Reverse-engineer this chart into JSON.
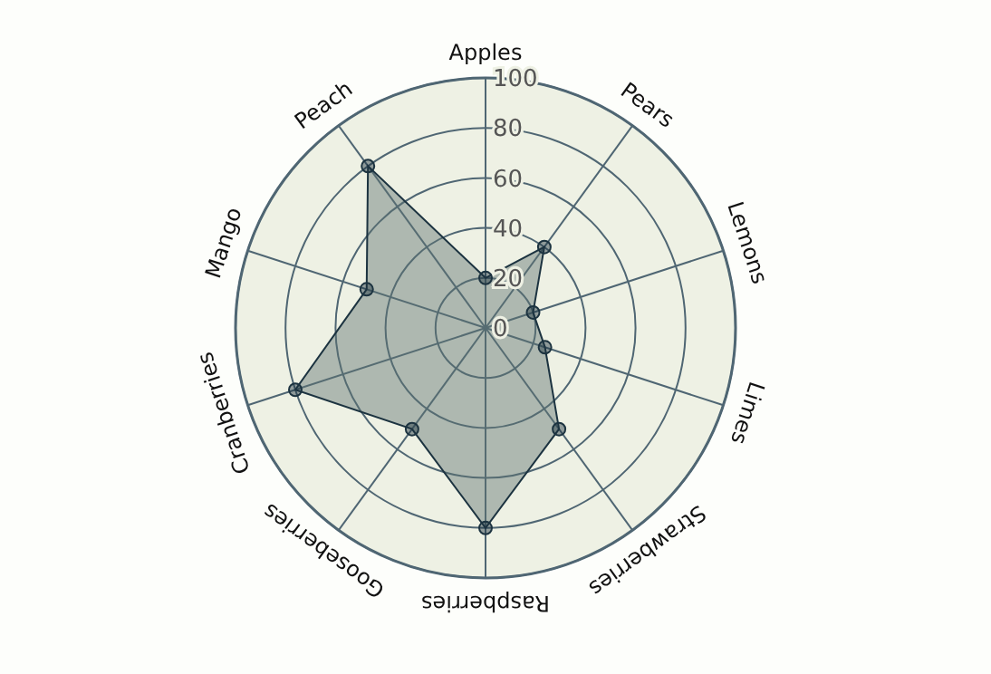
{
  "chart_data": {
    "type": "radar",
    "categories": [
      "Apples",
      "Pears",
      "Lemons",
      "Limes",
      "Strawberries",
      "Raspberries",
      "Gooseberries",
      "Cranberries",
      "Mango",
      "Peach"
    ],
    "series": [
      {
        "color": "#1c3340",
        "values": [
          20,
          40,
          20,
          25,
          50,
          80,
          50,
          80,
          50,
          80
        ]
      }
    ],
    "ylim": [
      0,
      100
    ],
    "yticks": [
      0,
      20,
      40,
      60,
      80,
      100
    ],
    "grid": true,
    "marker": "circle"
  }
}
